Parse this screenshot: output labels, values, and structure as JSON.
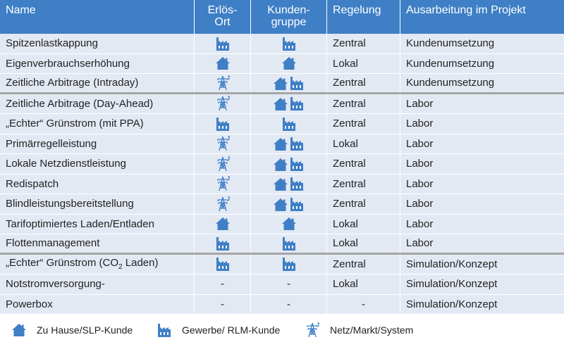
{
  "header": {
    "col1": "Name",
    "col2a": "Erlös-",
    "col2b": "Ort",
    "col3a": "Kunden-",
    "col3b": "gruppe",
    "col4": "Regelung",
    "col5": "Ausarbeitung im Projekt"
  },
  "rows": [
    {
      "name": "Spitzenlastkappung",
      "ort": [
        "factory"
      ],
      "gruppe": [
        "factory"
      ],
      "regelung": "Zentral",
      "ausarbeitung": "Kundenumsetzung"
    },
    {
      "name": "Eigenverbrauchserhöhung",
      "ort": [
        "house"
      ],
      "gruppe": [
        "house"
      ],
      "regelung": "Lokal",
      "ausarbeitung": "Kundenumsetzung"
    },
    {
      "name": "Zeitliche Arbitrage (Intraday)",
      "ort": [
        "pylon"
      ],
      "gruppe": [
        "house",
        "factory"
      ],
      "regelung": "Zentral",
      "ausarbeitung": "Kundenumsetzung"
    },
    {
      "name": "Zeitliche Arbitrage (Day-Ahead)",
      "ort": [
        "pylon"
      ],
      "gruppe": [
        "house",
        "factory"
      ],
      "regelung": "Zentral",
      "ausarbeitung": "Labor"
    },
    {
      "name": "„Echter“ Grünstrom (mit PPA)",
      "ort": [
        "factory"
      ],
      "gruppe": [
        "factory"
      ],
      "regelung": "Zentral",
      "ausarbeitung": "Labor"
    },
    {
      "name": "Primärregelleistung",
      "ort": [
        "pylon"
      ],
      "gruppe": [
        "house",
        "factory"
      ],
      "regelung": "Lokal",
      "ausarbeitung": "Labor"
    },
    {
      "name": "Lokale Netzdienstleistung",
      "ort": [
        "pylon"
      ],
      "gruppe": [
        "house",
        "factory"
      ],
      "regelung": "Zentral",
      "ausarbeitung": "Labor"
    },
    {
      "name": "Redispatch",
      "ort": [
        "pylon"
      ],
      "gruppe": [
        "house",
        "factory"
      ],
      "regelung": "Zentral",
      "ausarbeitung": "Labor"
    },
    {
      "name": "Blindleistungsbereitstellung",
      "ort": [
        "pylon"
      ],
      "gruppe": [
        "house",
        "factory"
      ],
      "regelung": "Zentral",
      "ausarbeitung": "Labor"
    },
    {
      "name": "Tarifoptimiertes Laden/Entladen",
      "ort": [
        "house"
      ],
      "gruppe": [
        "house"
      ],
      "regelung": "Lokal",
      "ausarbeitung": "Labor"
    },
    {
      "name": "Flottenmanagement",
      "ort": [
        "factory"
      ],
      "gruppe": [
        "factory"
      ],
      "regelung": "Lokal",
      "ausarbeitung": "Labor"
    },
    {
      "name_pre": "„Echter“ Grünstrom (CO",
      "name_sub": "2",
      "name_post": " Laden)",
      "ort": [
        "factory"
      ],
      "gruppe": [
        "factory"
      ],
      "regelung": "Zentral",
      "ausarbeitung": "Simulation/Konzept"
    },
    {
      "name": "Notstromversorgung-",
      "ort_text": "-",
      "gruppe_text": "-",
      "regelung": "Lokal",
      "ausarbeitung": "Simulation/Konzept"
    },
    {
      "name": "Powerbox",
      "ort_text": "-",
      "gruppe_text": "-",
      "regelung": "-",
      "ausarbeitung": "Simulation/Konzept"
    }
  ],
  "legend": {
    "house": "Zu Hause/SLP-Kunde",
    "factory": "Gewerbe/ RLM-Kunde",
    "pylon": "Netz/Markt/System"
  },
  "colors": {
    "header_bg": "#3e7fc6",
    "row_bg": "#e3e9f3",
    "icon": "#3e7fc6",
    "separator": "#a6a6a6"
  }
}
